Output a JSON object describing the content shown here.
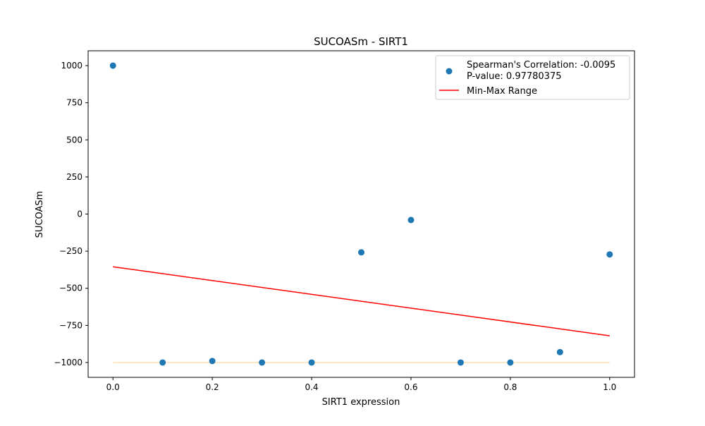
{
  "chart_data": {
    "type": "scatter",
    "title": "SUCOASm - SIRT1",
    "xlabel": "SIRT1 expression",
    "ylabel": "SUCOASm",
    "xlim": [
      -0.05,
      1.05
    ],
    "ylim": [
      -1100,
      1100
    ],
    "xticks": [
      0.0,
      0.2,
      0.4,
      0.6,
      0.8,
      1.0
    ],
    "xtick_labels": [
      "0.0",
      "0.2",
      "0.4",
      "0.6",
      "0.8",
      "1.0"
    ],
    "yticks": [
      1000,
      750,
      500,
      250,
      0,
      -250,
      -500,
      -750,
      -1000
    ],
    "ytick_labels": [
      "1000",
      "750",
      "500",
      "250",
      "0",
      "−250",
      "−500",
      "−750",
      "−1000"
    ],
    "grid": false,
    "legend_position": "top-right",
    "legend": {
      "scatter_label_line1": "Spearman's Correlation: -0.0095",
      "scatter_label_line2": "P-value: 0.97780375",
      "line_label": "Min-Max Range"
    },
    "points": {
      "x": [
        0.0,
        0.1,
        0.2,
        0.3,
        0.4,
        0.5,
        0.6,
        0.7,
        0.8,
        0.9,
        1.0
      ],
      "y": [
        1000,
        -1000,
        -990,
        -1000,
        -1000,
        -258,
        -40,
        -1000,
        -1000,
        -930,
        -272
      ],
      "color": "#1f77b4"
    },
    "fit_line": {
      "x": [
        0.0,
        1.0
      ],
      "y": [
        -355,
        -820
      ],
      "color": "#ff0000"
    },
    "baseline_line": {
      "x": [
        0.0,
        1.0
      ],
      "y": [
        -1000,
        -1000
      ],
      "color": "#ffe0b0"
    }
  }
}
